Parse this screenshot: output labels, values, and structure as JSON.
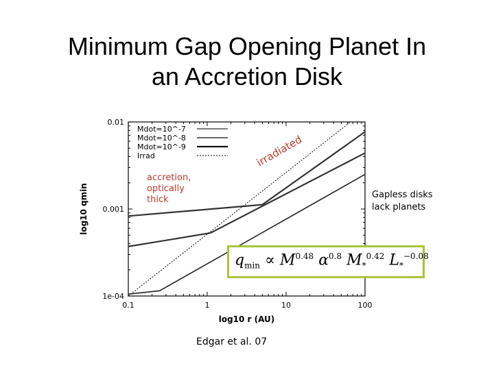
{
  "slide": {
    "title": "Minimum Gap Opening Planet In\nan Accretion Disk"
  },
  "annotations": {
    "accretion": "accretion,\noptically\nthick",
    "irradiated": "irradiated",
    "gapless": "Gapless disks\nlack planets",
    "citation": "Edgar et al. 07"
  },
  "formula": {
    "lhs": "q",
    "lhs_sub": "min",
    "prop": "∝",
    "mdot": "M",
    "mdot_exp": "0.48",
    "alpha": "α",
    "alpha_exp": "0.8",
    "mstar": "M",
    "mstar_sub": "*",
    "mstar_exp": "0.42",
    "lstar": "L",
    "lstar_sub": "*",
    "lstar_exp": "−0.08"
  },
  "chart_data": {
    "type": "line",
    "xlabel": "log10 r (AU)",
    "ylabel": "log10 qmin",
    "x_scale": "log",
    "y_scale": "log",
    "xlim": [
      0.1,
      100
    ],
    "ylim": [
      0.0001,
      0.01
    ],
    "x_ticks": [
      "0.1",
      "1",
      "10",
      "100"
    ],
    "x_tick_values": [
      0.1,
      1,
      10,
      100
    ],
    "y_ticks": [
      "1e-04",
      "0.001",
      "0.01"
    ],
    "y_tick_values": [
      0.0001,
      0.001,
      0.01
    ],
    "legend_position": "top-left",
    "series": [
      {
        "name": "Mdot=10^-7",
        "style": "solid-thin",
        "x": [
          0.1,
          5,
          100
        ],
        "y": [
          0.00083,
          0.00112,
          0.0077
        ]
      },
      {
        "name": "Mdot=10^-8",
        "style": "solid-medium",
        "x": [
          0.1,
          1.1,
          100
        ],
        "y": [
          0.00037,
          0.00053,
          0.0044
        ]
      },
      {
        "name": "Mdot=10^-9",
        "style": "solid-thick",
        "x": [
          0.1,
          0.25,
          100
        ],
        "y": [
          0.000105,
          0.000115,
          0.0025
        ]
      },
      {
        "name": "Irrad",
        "style": "dotted",
        "x": [
          0.1,
          100
        ],
        "y": [
          0.0001,
          0.0135
        ]
      }
    ]
  },
  "legend": {
    "items": [
      {
        "label": "Mdot=10^-7"
      },
      {
        "label": "Mdot=10^-8"
      },
      {
        "label": "Mdot=10^-9"
      },
      {
        "label": "Irrad"
      }
    ]
  }
}
